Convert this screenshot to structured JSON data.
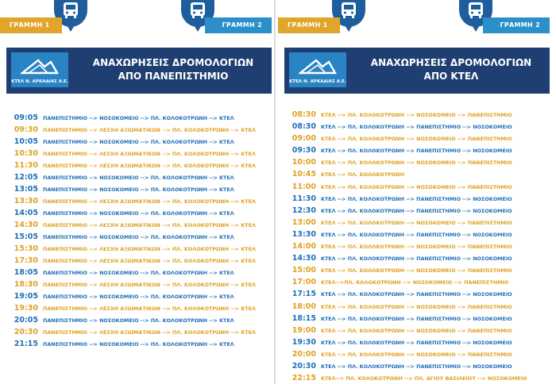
{
  "colors": {
    "blue": "#1e6fb8",
    "gold": "#e0a121",
    "header": "#1f3f73",
    "logo": "#2a83c5"
  },
  "left": {
    "line1_label": "ΓΡΑΜΜΗ 1",
    "line2_label": "ΓΡΑΜΜΗ 2",
    "logo_text": "ΚΤΕΛ Ν. ΑΡΚΑΔΙΑΣ Α.Ε.",
    "title_line1": "ΑΝΑΧΩΡΗΣΕΙΣ ΔΡΟΜΟΛΟΓΙΩΝ",
    "title_line2": "ΑΠΟ ΠΑΝΕΠΙΣΤΗΜΙΟ",
    "rows": [
      {
        "time": "09:05",
        "route": "ΠΑΝΕΠΙΣΤΗΜΙΟ --> ΝΟΣΟΚΟΜΕΙΟ --> ΠΛ. ΚΟΛΟΚΟΤΡΩΝΗ --> ΚΤΕΛ",
        "line": "blue"
      },
      {
        "time": "09:30",
        "route": "ΠΑΝΕΠΙΣΤΗΜΙΟ --> ΛΕΣΧΗ ΑΞΙΩΜΑΤΙΚΩΝ --> ΠΛ. ΚΟΛΟΚΟΤΡΩΝΗ --> ΚΤΕΛ",
        "line": "gold"
      },
      {
        "time": "10:05",
        "route": "ΠΑΝΕΠΙΣΤΗΜΙΟ --> ΝΟΣΟΚΟΜΕΙΟ --> ΠΛ. ΚΟΛΟΚΟΤΡΩΝΗ --> ΚΤΕΛ",
        "line": "blue"
      },
      {
        "time": "10:30",
        "route": "ΠΑΝΕΠΙΣΤΗΜΙΟ --> ΛΕΣΧΗ ΑΞΙΩΜΑΤΙΚΩΝ --> ΠΛ. ΚΟΛΟΚΟΤΡΩΝΗ --> ΚΤΕΛ",
        "line": "gold"
      },
      {
        "time": "11:30",
        "route": "ΠΑΝΕΠΙΣΤΗΜΙΟ --> ΛΕΣΧΗ ΑΞΙΩΜΑΤΙΚΩΝ --> ΠΛ. ΚΟΛΟΚΟΤΡΩΝΗ --> ΚΤΕΛ",
        "line": "gold"
      },
      {
        "time": "12:05",
        "route": "ΠΑΝΕΠΙΣΤΗΜΙΟ --> ΝΟΣΟΚΟΜΕΙΟ --> ΠΛ. ΚΟΛΟΚΟΤΡΩΝΗ --> ΚΤΕΛ",
        "line": "blue"
      },
      {
        "time": "13:05",
        "route": "ΠΑΝΕΠΙΣΤΗΜΙΟ --> ΝΟΣΟΚΟΜΕΙΟ --> ΠΛ. ΚΟΛΟΚΟΤΡΩΝΗ --> ΚΤΕΛ",
        "line": "blue"
      },
      {
        "time": "13:30",
        "route": "ΠΑΝΕΠΙΣΤΗΜΙΟ --> ΛΕΣΧΗ ΑΞΙΩΜΑΤΙΚΩΝ --> ΠΛ. ΚΟΛΟΚΟΤΡΩΝΗ --> ΚΤΕΛ",
        "line": "gold"
      },
      {
        "time": "14:05",
        "route": "ΠΑΝΕΠΙΣΤΗΜΙΟ --> ΝΟΣΟΚΟΜΕΙΟ --> ΠΛ. ΚΟΛΟΚΟΤΡΩΝΗ --> ΚΤΕΛ",
        "line": "blue"
      },
      {
        "time": "14:30",
        "route": "ΠΑΝΕΠΙΣΤΗΜΙΟ --> ΛΕΣΧΗ ΑΞΙΩΜΑΤΙΚΩΝ --> ΠΛ. ΚΟΛΟΚΟΤΡΩΝΗ --> ΚΤΕΛ",
        "line": "gold"
      },
      {
        "time": "15:05",
        "route": "ΠΑΝΕΠΙΣΤΗΜΙΟ --> ΝΟΣΟΚΟΜΕΙΟ --> ΠΛ. ΚΟΛΟΚΟΤΡΩΝΗ --> ΚΤΕΛ",
        "line": "blue"
      },
      {
        "time": "15:30",
        "route": "ΠΑΝΕΠΙΣΤΗΜΙΟ --> ΛΕΣΧΗ ΑΞΙΩΜΑΤΙΚΩΝ --> ΠΛ. ΚΟΛΟΚΟΤΡΩΝΗ --> ΚΤΕΛ",
        "line": "gold"
      },
      {
        "time": "17:30",
        "route": "ΠΑΝΕΠΙΣΤΗΜΙΟ --> ΛΕΣΧΗ ΑΞΙΩΜΑΤΙΚΩΝ --> ΠΛ. ΚΟΛΟΚΟΤΡΩΝΗ --> ΚΤΕΛ",
        "line": "gold"
      },
      {
        "time": "18:05",
        "route": "ΠΑΝΕΠΙΣΤΗΜΙΟ --> ΝΟΣΟΚΟΜΕΙΟ --> ΠΛ. ΚΟΛΟΚΟΤΡΩΝΗ --> ΚΤΕΛ",
        "line": "blue"
      },
      {
        "time": "18:30",
        "route": "ΠΑΝΕΠΙΣΤΗΜΙΟ --> ΛΕΣΧΗ ΑΞΙΩΜΑΤΙΚΩΝ --> ΠΛ. ΚΟΛΟΚΟΤΡΩΝΗ --> ΚΤΕΛ",
        "line": "gold"
      },
      {
        "time": "19:05",
        "route": "ΠΑΝΕΠΙΣΤΗΜΙΟ --> ΝΟΣΟΚΟΜΕΙΟ --> ΠΛ. ΚΟΛΟΚΟΤΡΩΝΗ --> ΚΤΕΛ",
        "line": "blue"
      },
      {
        "time": "19:30",
        "route": "ΠΑΝΕΠΙΣΤΗΜΙΟ --> ΛΕΣΧΗ ΑΞΙΩΜΑΤΙΚΩΝ --> ΠΛ. ΚΟΛΟΚΟΤΡΩΝΗ --> ΚΤΕΛ",
        "line": "gold"
      },
      {
        "time": "20:05",
        "route": "ΠΑΝΕΠΙΣΤΗΜΙΟ --> ΝΟΣΟΚΟΜΕΙΟ --> ΠΛ. ΚΟΛΟΚΟΤΡΩΝΗ --> ΚΤΕΛ",
        "line": "blue"
      },
      {
        "time": "20:30",
        "route": "ΠΑΝΕΠΙΣΤΗΜΙΟ --> ΛΕΣΧΗ ΑΞΙΩΜΑΤΙΚΩΝ --> ΠΛ. ΚΟΛΟΚΟΤΡΩΝΗ --> ΚΤΕΛ",
        "line": "gold"
      },
      {
        "time": "21:15",
        "route": "ΠΑΝΕΠΙΣΤΗΜΙΟ --> ΝΟΣΟΚΟΜΕΙΟ --> ΠΛ. ΚΟΛΟΚΟΤΡΩΝΗ --> ΚΤΕΛ",
        "line": "blue"
      }
    ]
  },
  "right": {
    "line1_label": "ΓΡΑΜΜΗ 1",
    "line2_label": "ΓΡΑΜΜΗ 2",
    "logo_text": "ΚΤΕΛ Ν. ΑΡΚΑΔΙΑΣ Α.Ε.",
    "title_line1": "ΑΝΑΧΩΡΗΣΕΙΣ ΔΡΟΜΟΛΟΓΙΩΝ",
    "title_line2": "ΑΠΟ ΚΤΕΛ",
    "rows": [
      {
        "time": "08:30",
        "route": "ΚΤΕΛ --> ΠΛ. ΚΟΛΟΚΟΤΡΩΝΗ --> ΝΟΣΟΚΟΜΕΙΟ --> ΠΑΝΕΠΙΣΤΗΜΙΟ",
        "line": "gold"
      },
      {
        "time": "08:30",
        "route": "ΚΤΕΛ --> ΠΛ. ΚΟΛΟΚΟΤΡΩΝΗ --> ΠΑΝΕΠΙΣΤΗΜΙΟ --> ΝΟΣΟΚΟΜΕΙΟ",
        "line": "blue"
      },
      {
        "time": "09:00",
        "route": "ΚΤΕΛ --> ΠΛ. ΚΟΛΟΚΟΤΡΩΝΗ --> ΝΟΣΟΚΟΜΕΙΟ --> ΠΑΝΕΠΙΣΤΗΜΙΟ",
        "line": "gold"
      },
      {
        "time": "09:30",
        "route": "ΚΤΕΛ --> ΠΛ. ΚΟΛΟΚΟΤΡΩΝΗ --> ΠΑΝΕΠΙΣΤΗΜΙΟ --> ΝΟΣΟΚΟΜΕΙΟ",
        "line": "blue"
      },
      {
        "time": "10:00",
        "route": "ΚΤΕΛ --> ΠΛ. ΚΟΛΟΚΟΤΡΩΝΗ --> ΝΟΣΟΚΟΜΕΙΟ --> ΠΑΝΕΠΙΣΤΗΜΙΟ",
        "line": "gold"
      },
      {
        "time": "10:45",
        "route": "ΚΤΕΛ --> ΠΛ. ΚΟΛΟΚΟΤΡΩΝΗ",
        "line": "gold"
      },
      {
        "time": "11:00",
        "route": "ΚΤΕΛ --> ΠΛ. ΚΟΛΟΚΟΤΡΩΝΗ --> ΝΟΣΟΚΟΜΕΙΟ --> ΠΑΝΕΠΙΣΤΗΜΙΟ",
        "line": "gold"
      },
      {
        "time": "11:30",
        "route": "ΚΤΕΛ --> ΠΛ. ΚΟΛΟΚΟΤΡΩΝΗ --> ΠΑΝΕΠΙΣΤΗΜΙΟ --> ΝΟΣΟΚΟΜΕΙΟ",
        "line": "blue"
      },
      {
        "time": "12:30",
        "route": "ΚΤΕΛ --> ΠΛ. ΚΟΛΟΚΟΤΡΩΝΗ --> ΠΑΝΕΠΙΣΤΗΜΙΟ --> ΝΟΣΟΚΟΜΕΙΟ",
        "line": "blue"
      },
      {
        "time": "13:00",
        "route": "ΚΤΕΛ --> ΠΛ. ΚΟΛΟΚΟΤΡΩΝΗ --> ΝΟΣΟΚΟΜΕΙΟ --> ΠΑΝΕΠΙΣΤΗΜΙΟ",
        "line": "gold"
      },
      {
        "time": "13:30",
        "route": "ΚΤΕΛ --> ΠΛ. ΚΟΛΟΚΟΤΡΩΝΗ --> ΠΑΝΕΠΙΣΤΗΜΙΟ --> ΝΟΣΟΚΟΜΕΙΟ",
        "line": "blue"
      },
      {
        "time": "14:00",
        "route": "ΚΤΕΛ --> ΠΛ. ΚΟΛΟΚΟΤΡΩΝΗ --> ΝΟΣΟΚΟΜΕΙΟ --> ΠΑΝΕΠΙΣΤΗΜΙΟ",
        "line": "gold"
      },
      {
        "time": "14:30",
        "route": "ΚΤΕΛ --> ΠΛ. ΚΟΛΟΚΟΤΡΩΝΗ --> ΠΑΝΕΠΙΣΤΗΜΙΟ --> ΝΟΣΟΚΟΜΕΙΟ",
        "line": "blue"
      },
      {
        "time": "15:00",
        "route": "ΚΤΕΛ --> ΠΛ. ΚΟΛΟΚΟΤΡΩΝΗ --> ΝΟΣΟΚΟΜΕΙΟ --> ΠΑΝΕΠΙΣΤΗΜΙΟ",
        "line": "gold"
      },
      {
        "time": "17:00",
        "route": "ΚΤΕΛ-->ΠΛ. ΚΟΛΟΚΟΤΡΩΝΗ --> ΝΟΣΟΚΟΜΕΙΟ --> ΠΑΝΕΠΙΣΤΗΜΙΟ",
        "line": "gold"
      },
      {
        "time": "17:15",
        "route": "ΚΤΕΛ --> ΠΛ. ΚΟΛΟΚΟΤΡΩΝΗ --> ΠΑΝΕΠΙΣΤΗΜΙΟ --> ΝΟΣΟΚΟΜΕΙΟ",
        "line": "blue"
      },
      {
        "time": "18:00",
        "route": "ΚΤΕΛ --> ΠΛ. ΚΟΛΟΚΟΤΡΩΝΗ --> ΝΟΣΟΚΟΜΕΙΟ --> ΠΑΝΕΠΙΣΤΗΜΙΟ",
        "line": "gold"
      },
      {
        "time": "18:15",
        "route": "ΚΤΕΛ --> ΠΛ. ΚΟΛΟΚΟΤΡΩΝΗ --> ΠΑΝΕΠΙΣΤΗΜΙΟ --> ΝΟΣΟΚΟΜΕΙΟ",
        "line": "blue"
      },
      {
        "time": "19:00",
        "route": "ΚΤΕΛ --> ΠΛ. ΚΟΛΟΚΟΤΡΩΝΗ --> ΝΟΣΟΚΟΜΕΙΟ --> ΠΑΝΕΠΙΣΤΗΜΙΟ",
        "line": "gold"
      },
      {
        "time": "19:30",
        "route": "ΚΤΕΛ --> ΠΛ. ΚΟΛΟΚΟΤΡΩΝΗ --> ΠΑΝΕΠΙΣΤΗΜΙΟ --> ΝΟΣΟΚΟΜΕΙΟ",
        "line": "blue"
      },
      {
        "time": "20:00",
        "route": "ΚΤΕΛ --> ΠΛ. ΚΟΛΟΚΟΤΡΩΝΗ --> ΝΟΣΟΚΟΜΕΙΟ --> ΠΑΝΕΠΙΣΤΗΜΙΟ",
        "line": "gold"
      },
      {
        "time": "20:30",
        "route": "ΚΤΕΛ --> ΠΛ. ΚΟΛΟΚΟΤΡΩΝΗ --> ΠΑΝΕΠΙΣΤΗΜΙΟ --> ΝΟΣΟΚΟΜΕΙΟ",
        "line": "blue"
      },
      {
        "time": "22:15",
        "route": "ΚΤΕΛ--> ΠΛ. ΚΟΛΟΚΟΤΡΩΝΗ --> ΠΛ. ΑΓΙΟΥ ΒΑΣΙΛΕΙΟΥ --> ΝΟΣΟΚΟΜΕΙΟ",
        "line": "gold"
      }
    ]
  }
}
